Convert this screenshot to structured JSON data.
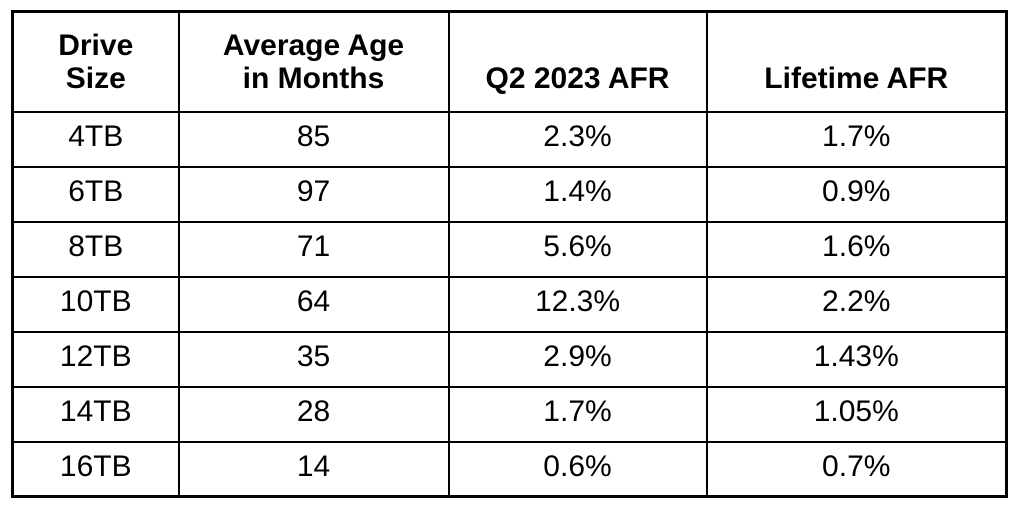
{
  "colors": {
    "background": "#ffffff",
    "border": "#000000",
    "text": "#000000"
  },
  "display": {
    "headers": [
      "Drive\nSize",
      "Average Age\nin Months",
      "Q2 2023 AFR",
      "Lifetime AFR"
    ]
  },
  "chart_data": {
    "type": "table",
    "columns": [
      "Drive Size",
      "Average Age in Months",
      "Q2 2023 AFR",
      "Lifetime AFR"
    ],
    "rows": [
      [
        "4TB",
        "85",
        "2.3%",
        "1.7%"
      ],
      [
        "6TB",
        "97",
        "1.4%",
        "0.9%"
      ],
      [
        "8TB",
        "71",
        "5.6%",
        "1.6%"
      ],
      [
        "10TB",
        "64",
        "12.3%",
        "2.2%"
      ],
      [
        "12TB",
        "35",
        "2.9%",
        "1.43%"
      ],
      [
        "14TB",
        "28",
        "1.7%",
        "1.05%"
      ],
      [
        "16TB",
        "14",
        "0.6%",
        "0.7%"
      ]
    ],
    "numeric": {
      "drive_sizes_tb": [
        4,
        6,
        8,
        10,
        12,
        14,
        16
      ],
      "average_age_months": [
        85,
        97,
        71,
        64,
        35,
        28,
        14
      ],
      "q2_2023_afr_percent": [
        2.3,
        1.4,
        5.6,
        12.3,
        2.9,
        1.7,
        0.6
      ],
      "lifetime_afr_percent": [
        1.7,
        0.9,
        1.6,
        2.2,
        1.43,
        1.05,
        0.7
      ]
    }
  }
}
